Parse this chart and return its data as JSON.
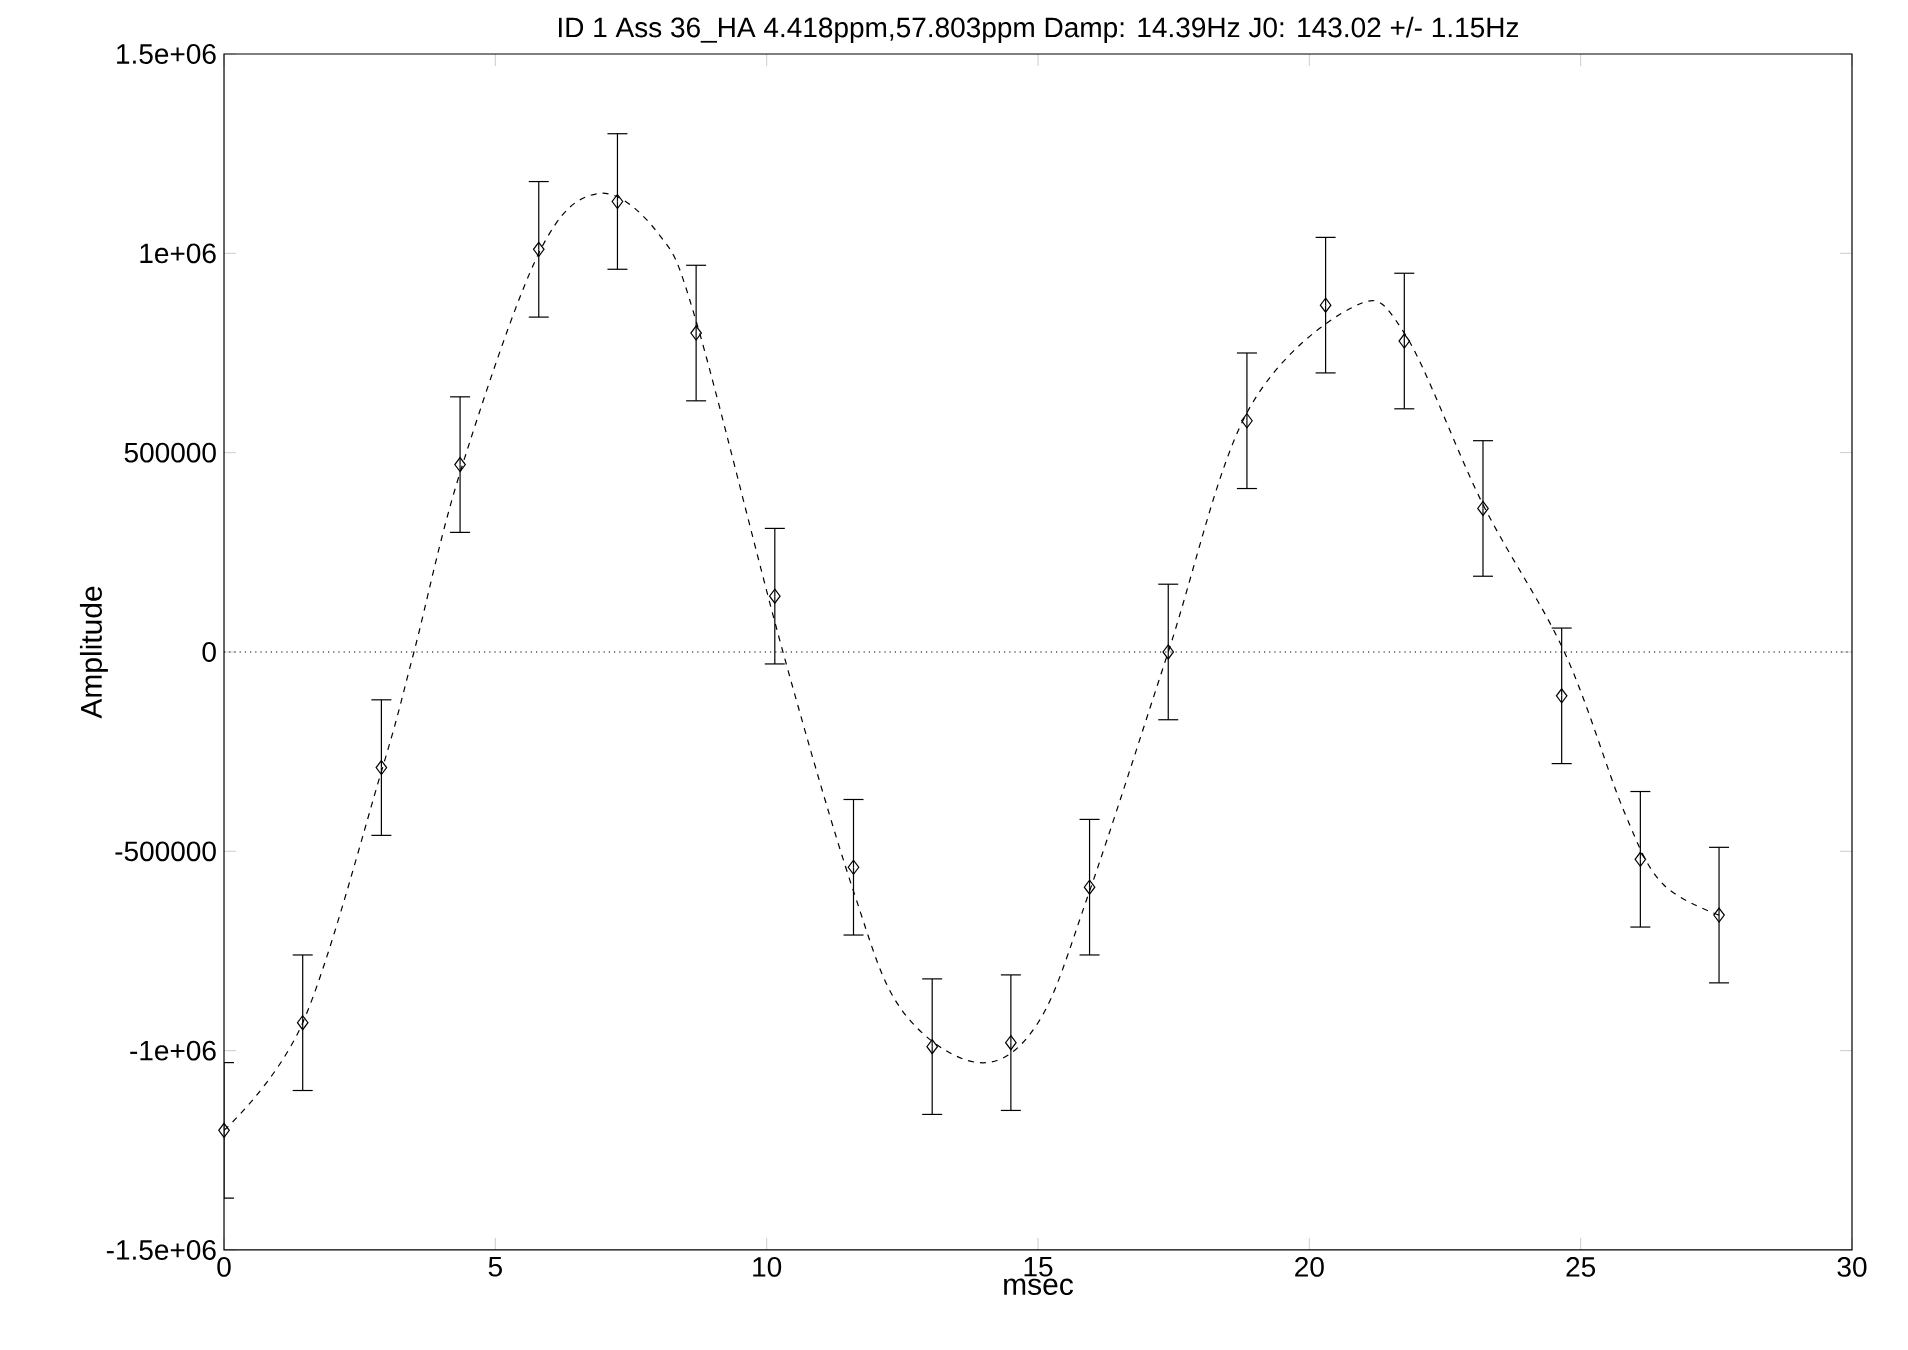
{
  "chart_data": {
    "type": "scatter",
    "title": "ID 1 Ass 36_HA 4.418ppm,57.803ppm  Damp: 14.39Hz J0: 143.02 +/- 1.15Hz",
    "xlabel": "msec",
    "ylabel": "Amplitude",
    "xlim": [
      0,
      30
    ],
    "xticks": [
      0,
      5,
      10,
      15,
      20,
      25,
      30
    ],
    "ylim": [
      -1500000,
      1500000
    ],
    "yticks": [
      {
        "value": -1500000,
        "label": "-1.5e+06"
      },
      {
        "value": -1000000,
        "label": "-1e+06"
      },
      -500000,
      0,
      500000,
      {
        "value": 1000000,
        "label": "1e+06"
      },
      {
        "value": 1500000,
        "label": "1.5e+06"
      }
    ],
    "grid": false,
    "ref_lines": [
      {
        "axis": "y",
        "value": 0,
        "line_style": "dotted",
        "color": "#000000"
      }
    ],
    "series": [
      {
        "color": "#000000",
        "marker": "diamond",
        "x": [
          0,
          1.45,
          2.9,
          4.35,
          5.8,
          7.25,
          8.7,
          10.15,
          11.6,
          13.05,
          14.5,
          15.95,
          17.4,
          18.85,
          20.3,
          21.75,
          23.2,
          24.65,
          26.1,
          27.55
        ],
        "values": [
          -1200000,
          -930000,
          -290000,
          470000,
          1010000,
          1130000,
          800000,
          140000,
          -540000,
          -990000,
          -980000,
          -590000,
          0,
          580000,
          870000,
          780000,
          360000,
          -110000,
          -520000,
          -660000
        ],
        "errors": [
          170000,
          170000,
          170000,
          170000,
          170000,
          170000,
          170000,
          170000,
          170000,
          170000,
          170000,
          170000,
          170000,
          170000,
          170000,
          170000,
          170000,
          170000,
          170000,
          170000
        ]
      },
      {
        "type": "line",
        "color": "#000000",
        "marker": "none",
        "line_style": "dashed",
        "x": [
          0,
          1.45,
          2.9,
          3.5,
          4.35,
          5.8,
          6.9,
          8.0,
          8.7,
          10.3,
          11.6,
          12.5,
          13.9,
          15.0,
          15.95,
          17.4,
          18.85,
          20.8,
          21.75,
          23.2,
          24.7,
          25.8,
          26.5,
          27.55
        ],
        "values": [
          -1200000,
          -930000,
          -300000,
          0,
          450000,
          1000000,
          1150000,
          1050000,
          830000,
          0,
          -600000,
          -900000,
          -1030000,
          -930000,
          -600000,
          0,
          600000,
          865000,
          800000,
          370000,
          0,
          -400000,
          -580000,
          -660000
        ]
      }
    ]
  }
}
